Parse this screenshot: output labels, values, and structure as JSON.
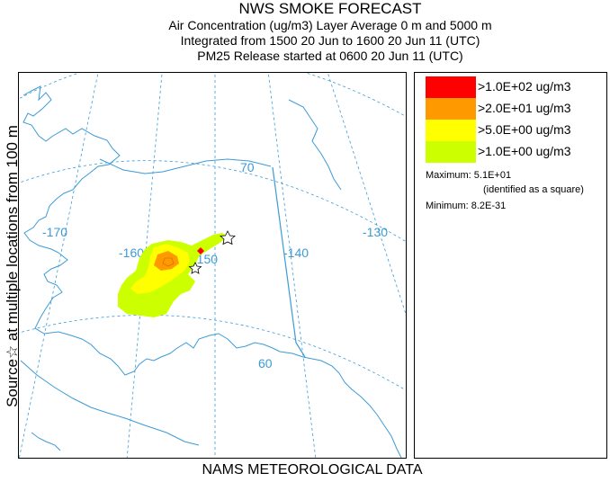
{
  "title": "NWS SMOKE FORECAST",
  "subtitle_1": "Air Concentration (ug/m3) Layer Average    0 m and  5000 m",
  "subtitle_2": "Integrated from 1500 20 Jun to 1600 20 Jun 11 (UTC)",
  "subtitle_3": "PM25 Release started at 0600 20 Jun 11 (UTC)",
  "side_label": "Source☆  at multiple locations  from  100 m",
  "footer": "NAMS METEOROLOGICAL DATA",
  "map": {
    "meridian_labels": [
      "-170",
      "-160",
      "-150",
      "-140",
      "-130"
    ],
    "parallel_labels": [
      "70",
      "60"
    ],
    "line_color": "#3d9bd6",
    "source_marker": "star-icon"
  },
  "legend": {
    "items": [
      {
        "color": "#ff0000",
        "label": ">1.0E+02 ug/m3"
      },
      {
        "color": "#ff9900",
        "label": ">2.0E+01 ug/m3"
      },
      {
        "color": "#ffff00",
        "label": ">5.0E+00 ug/m3"
      },
      {
        "color": "#ccff00",
        "label": ">1.0E+00 ug/m3"
      }
    ],
    "maximum": "Maximum: 5.1E+01",
    "maximum_note": "(identified as a square)",
    "minimum": "Minimum: 8.2E-31"
  }
}
